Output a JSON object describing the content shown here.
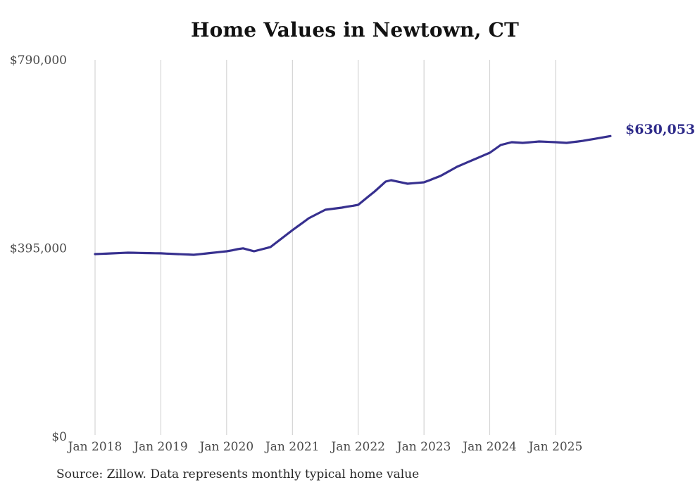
{
  "chart_data": {
    "type": "line",
    "title": "Home Values in Newtown, CT",
    "series_name": "Monthly typical home value",
    "x": [
      "2018-01",
      "2018-02",
      "2018-03",
      "2018-04",
      "2018-05",
      "2018-06",
      "2018-07",
      "2018-08",
      "2018-09",
      "2018-10",
      "2018-11",
      "2018-12",
      "2019-01",
      "2019-02",
      "2019-03",
      "2019-04",
      "2019-05",
      "2019-06",
      "2019-07",
      "2019-08",
      "2019-09",
      "2019-10",
      "2019-11",
      "2019-12",
      "2020-01",
      "2020-02",
      "2020-03",
      "2020-04",
      "2020-05",
      "2020-06",
      "2020-07",
      "2020-08",
      "2020-09",
      "2020-10",
      "2020-11",
      "2020-12",
      "2021-01",
      "2021-02",
      "2021-03",
      "2021-04",
      "2021-05",
      "2021-06",
      "2021-07",
      "2021-08",
      "2021-09",
      "2021-10",
      "2021-11",
      "2021-12",
      "2022-01",
      "2022-02",
      "2022-03",
      "2022-04",
      "2022-05",
      "2022-06",
      "2022-07",
      "2022-08",
      "2022-09",
      "2022-10",
      "2022-11",
      "2022-12",
      "2023-01",
      "2023-02",
      "2023-03",
      "2023-04",
      "2023-05",
      "2023-06",
      "2023-07",
      "2023-08",
      "2023-09",
      "2023-10",
      "2023-11",
      "2023-12",
      "2024-01",
      "2024-02",
      "2024-03",
      "2024-04",
      "2024-05",
      "2024-06",
      "2024-07",
      "2024-08",
      "2024-09",
      "2024-10",
      "2024-11",
      "2024-12",
      "2025-01",
      "2025-02",
      "2025-03",
      "2025-04",
      "2025-05",
      "2025-06",
      "2025-07",
      "2025-08",
      "2025-09",
      "2025-10",
      "2025-11"
    ],
    "values": [
      382400,
      382900,
      383400,
      383900,
      384400,
      384900,
      385400,
      385200,
      384900,
      384700,
      384500,
      384200,
      384000,
      383500,
      383000,
      382500,
      382000,
      381500,
      381000,
      382200,
      383400,
      384700,
      385900,
      387100,
      388300,
      390300,
      392800,
      394500,
      391500,
      388300,
      391300,
      394200,
      397200,
      406100,
      414900,
      423800,
      432600,
      441000,
      449300,
      457700,
      463600,
      469600,
      475500,
      477000,
      478400,
      479900,
      481900,
      483800,
      485800,
      495200,
      504500,
      513900,
      524200,
      534500,
      537500,
      535000,
      532600,
      530100,
      531100,
      532000,
      533000,
      537400,
      541900,
      546300,
      552700,
      559100,
      565500,
      570400,
      575400,
      580300,
      585200,
      590200,
      595100,
      603200,
      611300,
      614300,
      617200,
      616500,
      615700,
      616700,
      617700,
      618700,
      618200,
      617700,
      617200,
      616500,
      615700,
      617200,
      618600,
      620100,
      622100,
      624000,
      626000,
      628000,
      630053
    ],
    "last_value": 630053,
    "last_value_label": "$630,053",
    "ylim": [
      0,
      790000
    ],
    "ytick_values": [
      0,
      395000,
      790000
    ],
    "ytick_labels": [
      "$0",
      "$395,000",
      "$790,000"
    ],
    "xtick_month_indices": [
      0,
      12,
      24,
      36,
      48,
      60,
      72,
      84
    ],
    "xtick_labels": [
      "Jan 2018",
      "Jan 2019",
      "Jan 2020",
      "Jan 2021",
      "Jan 2022",
      "Jan 2023",
      "Jan 2024",
      "Jan 2025"
    ],
    "grid": "vertical-only",
    "legend": "none",
    "line_color": "#37308f",
    "label_color": "#2e2b8a",
    "gridline_color": "#cccccc",
    "tick_color": "#4a4a4a",
    "source": "Source: Zillow. Data represents monthly typical home value"
  }
}
